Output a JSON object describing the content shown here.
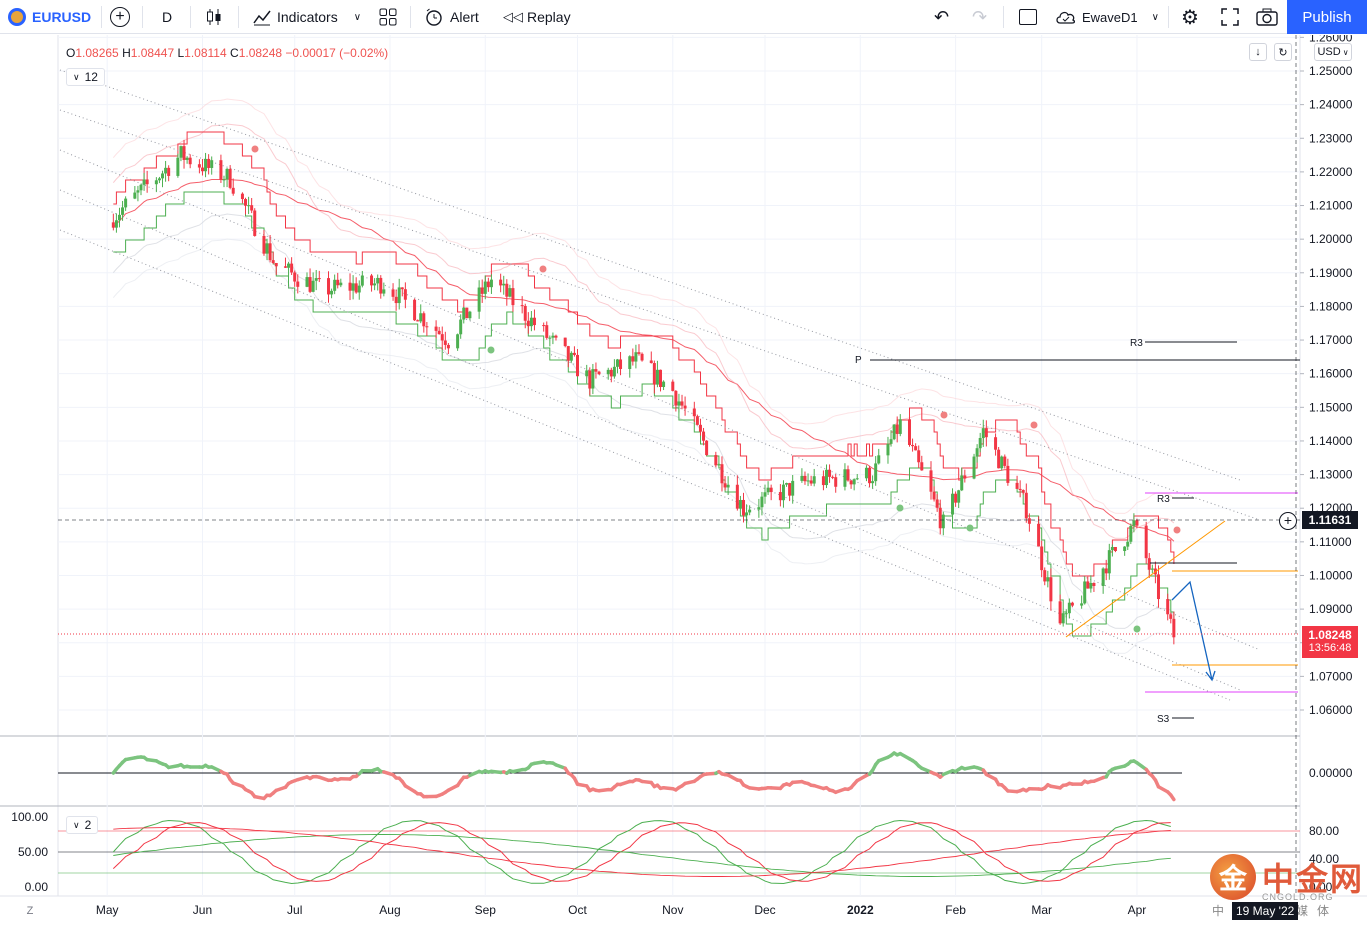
{
  "toolbar": {
    "symbol": "EURUSD",
    "interval": "D",
    "indicators_label": "Indicators",
    "alert_label": "Alert",
    "replay_label": "Replay",
    "layout_name": "EwaveD1",
    "publish_label": "Publish"
  },
  "legend": {
    "o_label": "O",
    "o_value": "1.08265",
    "h_label": "H",
    "h_value": "1.08447",
    "l_label": "L",
    "l_value": "1.08114",
    "c_label": "C",
    "c_value": "1.08248",
    "change": "−0.00017 (−0.02%)",
    "indicator_count": "12",
    "osc_count": "2"
  },
  "price_axis": {
    "currency": "USD",
    "labels": [
      "1.26000",
      "1.25000",
      "1.24000",
      "1.23000",
      "1.22000",
      "1.21000",
      "1.20000",
      "1.19000",
      "1.18000",
      "1.17000",
      "1.16000",
      "1.15000",
      "1.14000",
      "1.13000",
      "1.12000",
      "1.11000",
      "1.10000",
      "1.09000",
      "1.08000",
      "1.07000",
      "1.06000"
    ],
    "crosshair_price": "1.11631",
    "last_price": "1.08248",
    "countdown": "13:56:48",
    "osc1_label": "0.00000",
    "osc2_labels": [
      "80.00",
      "40.00",
      "0.00"
    ],
    "osc2_left_labels": [
      "100.00",
      "50.00",
      "0.00"
    ]
  },
  "time_axis": {
    "labels": [
      "May",
      "Jun",
      "Jul",
      "Aug",
      "Sep",
      "Oct",
      "Nov",
      "Dec",
      "2022",
      "Feb",
      "Mar",
      "Apr"
    ],
    "crosshair_date": "19 May '22"
  },
  "pivots": {
    "r3_label": "R3",
    "p_label": "P",
    "s3_label": "S3"
  },
  "watermark": {
    "logo_char": "金",
    "cn_text": "中金网",
    "en_text": "CNGOLD.ORG",
    "sub_text": "中金财新媒体"
  },
  "colors": {
    "accent": "#2962ff",
    "up": "#26a69a",
    "down": "#ef5350",
    "candle_up": "#4caf50",
    "candle_down": "#f23645"
  },
  "chart_data": {
    "type": "candlestick",
    "title": "EURUSD, D",
    "ylim": [
      1.055,
      1.265
    ],
    "x_labels": [
      "May",
      "Jun",
      "Jul",
      "Aug",
      "Sep",
      "Oct",
      "Nov",
      "Dec",
      "2022",
      "Feb",
      "Mar",
      "Apr"
    ],
    "path_points": [
      [
        "2021-05-01",
        1.205
      ],
      [
        "2021-05-25",
        1.225
      ],
      [
        "2021-06-10",
        1.218
      ],
      [
        "2021-06-25",
        1.192
      ],
      [
        "2021-07-10",
        1.185
      ],
      [
        "2021-07-30",
        1.187
      ],
      [
        "2021-08-20",
        1.17
      ],
      [
        "2021-09-03",
        1.188
      ],
      [
        "2021-09-20",
        1.172
      ],
      [
        "2021-10-05",
        1.158
      ],
      [
        "2021-10-20",
        1.164
      ],
      [
        "2021-11-01",
        1.155
      ],
      [
        "2021-11-24",
        1.12
      ],
      [
        "2021-12-15",
        1.128
      ],
      [
        "2022-01-05",
        1.13
      ],
      [
        "2022-01-14",
        1.145
      ],
      [
        "2022-01-28",
        1.115
      ],
      [
        "2022-02-10",
        1.143
      ],
      [
        "2022-02-24",
        1.12
      ],
      [
        "2022-03-07",
        1.085
      ],
      [
        "2022-03-31",
        1.115
      ],
      [
        "2022-04-13",
        1.082
      ]
    ]
  }
}
